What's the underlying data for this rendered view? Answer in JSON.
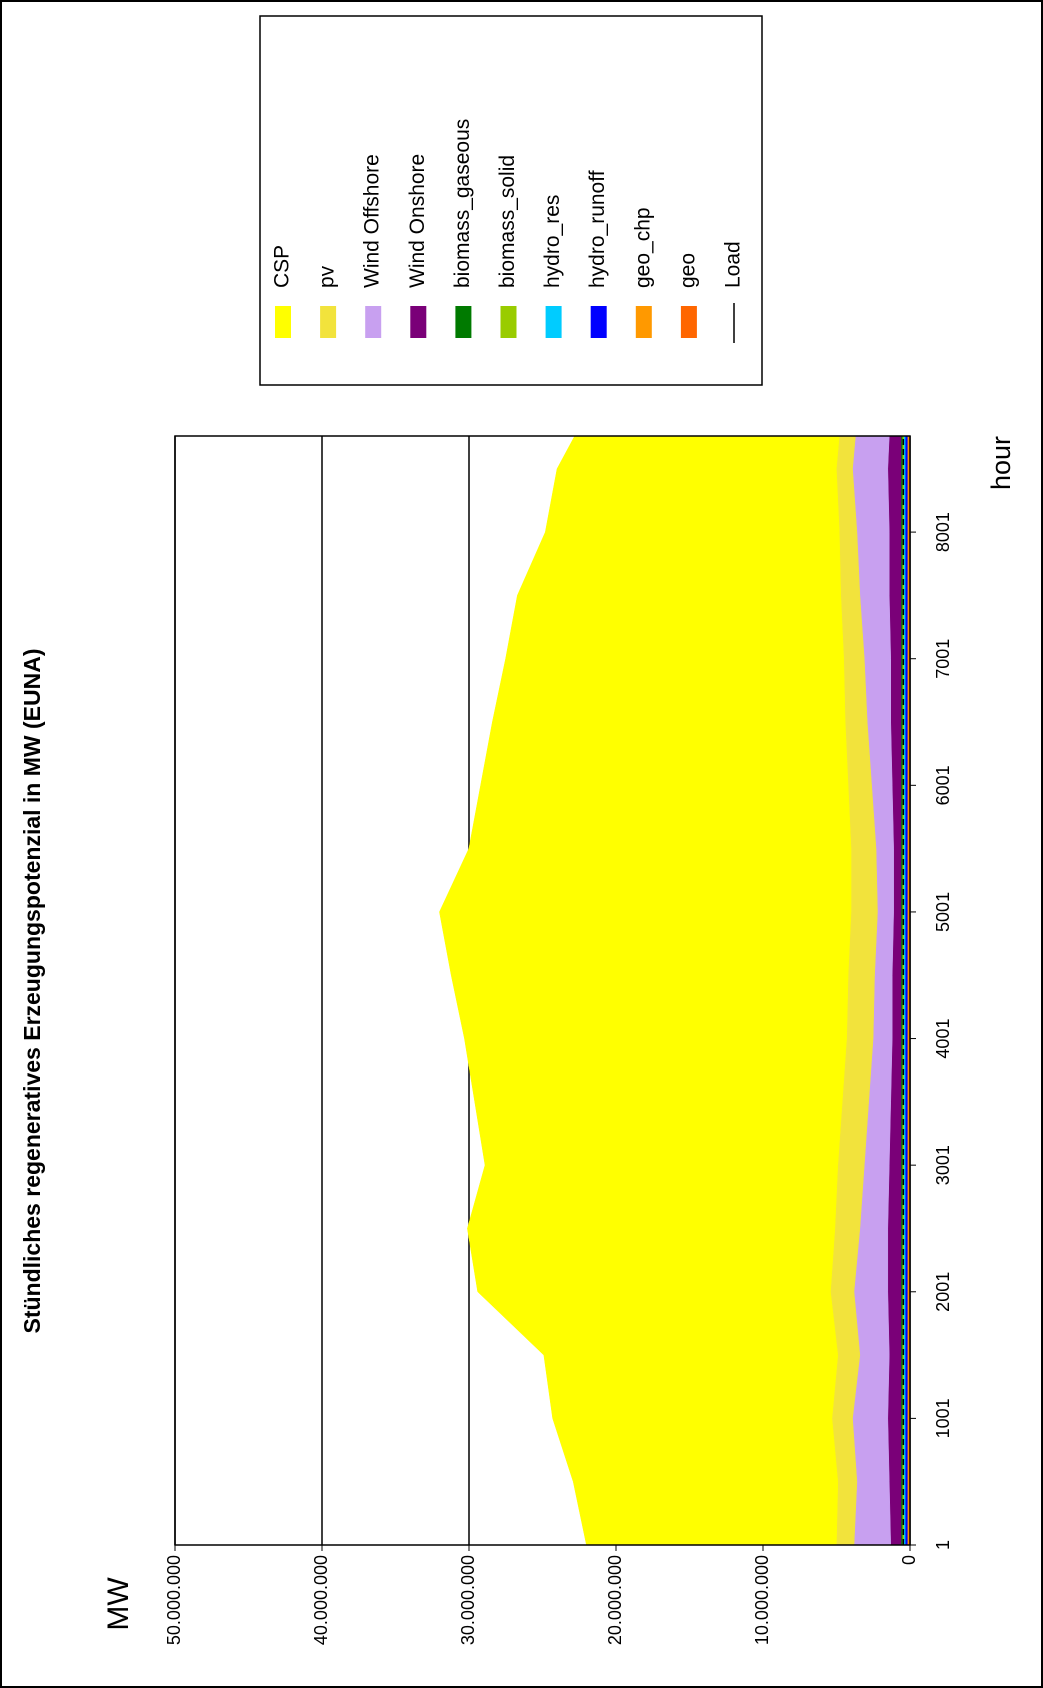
{
  "chart_data": {
    "type": "stacked_area",
    "title": "Stündliches regeneratives Erzeugungspotenzial in MW (EUNA)",
    "y_label": "MW",
    "x_label": "hour",
    "x": [
      1,
      501,
      1001,
      1501,
      2001,
      2501,
      3001,
      3501,
      4001,
      4501,
      5001,
      5501,
      6001,
      6501,
      7001,
      7501,
      8001,
      8501,
      8760
    ],
    "xlim": [
      1,
      8760
    ],
    "xticks": [
      1,
      1001,
      2001,
      3001,
      4001,
      5001,
      6001,
      7001,
      8001
    ],
    "ylim": [
      0,
      50000000
    ],
    "yticks": [
      0,
      {
        "value": 10000000,
        "label": "10.000.000"
      },
      {
        "value": 20000000,
        "label": "20.000.000"
      },
      {
        "value": 30000000,
        "label": "30.000.000"
      },
      {
        "value": 40000000,
        "label": "40.000.000"
      },
      {
        "value": 50000000,
        "label": "50.000.000"
      }
    ],
    "grid": true,
    "series": [
      {
        "name": "CSP",
        "color": "#ffff00",
        "values": [
          17000000,
          18000000,
          19000000,
          20000000,
          24000000,
          25000000,
          24000000,
          25000000,
          26000000,
          27000000,
          28000000,
          26000000,
          25000000,
          24000000,
          23000000,
          22000000,
          20000000,
          19000000,
          18000000
        ]
      },
      {
        "name": "pv",
        "color": "#f2e33c",
        "values": [
          1200000,
          1300000,
          1400000,
          1500000,
          1600000,
          1700000,
          1800000,
          1800000,
          1800000,
          1800000,
          1800000,
          1700000,
          1600000,
          1500000,
          1400000,
          1300000,
          1200000,
          1100000,
          1100000
        ]
      },
      {
        "name": "Wind Offshore",
        "color": "#c8a0f0",
        "values": [
          2500000,
          2200000,
          2400000,
          2000000,
          2300000,
          1900000,
          1700000,
          1500000,
          1300000,
          1200000,
          1100000,
          1200000,
          1400000,
          1600000,
          1800000,
          2000000,
          2200000,
          2400000,
          2300000
        ]
      },
      {
        "name": "Wind Onshore",
        "color": "#7a0078",
        "values": [
          700000,
          800000,
          900000,
          800000,
          900000,
          900000,
          800000,
          700000,
          600000,
          600000,
          500000,
          500000,
          600000,
          700000,
          700000,
          800000,
          800000,
          900000,
          800000
        ]
      },
      {
        "name": "biomass_gaseous",
        "color": "#007a00",
        "values": [
          80000,
          80000,
          80000,
          80000,
          80000,
          80000,
          80000,
          80000,
          80000,
          80000,
          80000,
          80000,
          80000,
          80000,
          80000,
          80000,
          80000,
          80000,
          80000
        ]
      },
      {
        "name": "biomass_solid",
        "color": "#99cc00",
        "values": [
          100000,
          100000,
          100000,
          100000,
          100000,
          100000,
          100000,
          100000,
          100000,
          100000,
          100000,
          100000,
          100000,
          100000,
          100000,
          100000,
          100000,
          100000,
          100000
        ]
      },
      {
        "name": "hydro_res",
        "color": "#00ccff",
        "values": [
          100000,
          100000,
          100000,
          100000,
          100000,
          100000,
          100000,
          100000,
          100000,
          100000,
          100000,
          100000,
          100000,
          100000,
          100000,
          100000,
          100000,
          100000,
          100000
        ]
      },
      {
        "name": "hydro_runoff",
        "color": "#0000ff",
        "values": [
          150000,
          150000,
          150000,
          150000,
          150000,
          150000,
          150000,
          150000,
          150000,
          150000,
          150000,
          150000,
          150000,
          150000,
          150000,
          150000,
          150000,
          150000,
          150000
        ]
      },
      {
        "name": "geo_chp",
        "color": "#ff9900",
        "values": [
          80000,
          80000,
          80000,
          80000,
          80000,
          80000,
          80000,
          80000,
          80000,
          80000,
          80000,
          80000,
          80000,
          80000,
          80000,
          80000,
          80000,
          80000,
          80000
        ]
      },
      {
        "name": "geo",
        "color": "#ff6600",
        "values": [
          100000,
          100000,
          100000,
          100000,
          100000,
          100000,
          100000,
          100000,
          100000,
          100000,
          100000,
          100000,
          100000,
          100000,
          100000,
          100000,
          100000,
          100000,
          100000
        ]
      },
      {
        "name": "Load",
        "color": "#000000",
        "line": true,
        "values": [
          450000,
          450000,
          450000,
          450000,
          450000,
          450000,
          450000,
          450000,
          450000,
          450000,
          450000,
          450000,
          450000,
          450000,
          450000,
          450000,
          450000,
          450000,
          450000
        ]
      }
    ]
  }
}
